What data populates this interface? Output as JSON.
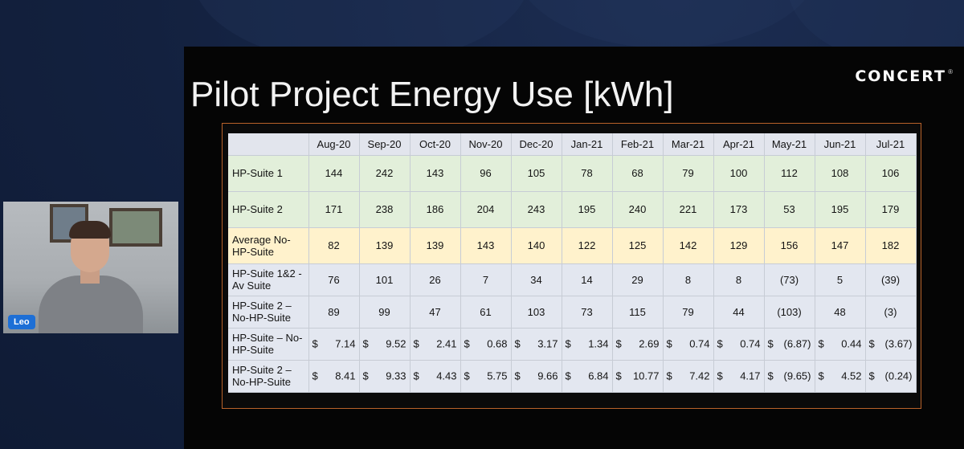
{
  "slide": {
    "title": "Pilot Project Energy Use [kWh]",
    "logo_text": "CONCERT",
    "logo_mark": "®"
  },
  "webcam": {
    "participant_name": "Leo"
  },
  "table": {
    "headers": [
      "",
      "Aug-20",
      "Sep-20",
      "Oct-20",
      "Nov-20",
      "Dec-20",
      "Jan-21",
      "Feb-21",
      "Mar-21",
      "Apr-21",
      "May-21",
      "Jun-21",
      "Jul-21"
    ],
    "rows": [
      {
        "label": "HP-Suite 1",
        "values": [
          "144",
          "242",
          "143",
          "96",
          "105",
          "78",
          "68",
          "79",
          "100",
          "112",
          "108",
          "106"
        ]
      },
      {
        "label": "HP-Suite 2",
        "values": [
          "171",
          "238",
          "186",
          "204",
          "243",
          "195",
          "240",
          "221",
          "173",
          "53",
          "195",
          "179"
        ]
      },
      {
        "label": "Average No-HP-Suite",
        "values": [
          "82",
          "139",
          "139",
          "143",
          "140",
          "122",
          "125",
          "142",
          "129",
          "156",
          "147",
          "182"
        ]
      },
      {
        "label": "HP-Suite 1&2 - Av Suite",
        "values": [
          "76",
          "101",
          "26",
          "7",
          "34",
          "14",
          "29",
          "8",
          "8",
          "(73)",
          "5",
          "(39)"
        ]
      },
      {
        "label": "HP-Suite 2 – No-HP-Suite",
        "values": [
          "89",
          "99",
          "47",
          "61",
          "103",
          "73",
          "115",
          "79",
          "44",
          "(103)",
          "48",
          "(3)"
        ]
      }
    ],
    "money_rows": [
      {
        "label": "HP-Suite – No-HP-Suite",
        "currency": "$",
        "values": [
          "7.14",
          "9.52",
          "2.41",
          "0.68",
          "3.17",
          "1.34",
          "2.69",
          "0.74",
          "0.74",
          "(6.87)",
          "0.44",
          "(3.67)"
        ]
      },
      {
        "label": "HP-Suite 2 – No-HP-Suite",
        "currency": "$",
        "values": [
          "8.41",
          "9.33",
          "4.43",
          "5.75",
          "9.66",
          "6.84",
          "10.77",
          "7.42",
          "4.17",
          "(9.65)",
          "4.52",
          "(0.24)"
        ]
      }
    ]
  },
  "colors": {
    "green_row": "#e2efda",
    "yellow_row": "#fff2cc",
    "blue_row": "#e3e7f0",
    "table_border": "#b8622a",
    "badge": "#1d6fd6"
  }
}
